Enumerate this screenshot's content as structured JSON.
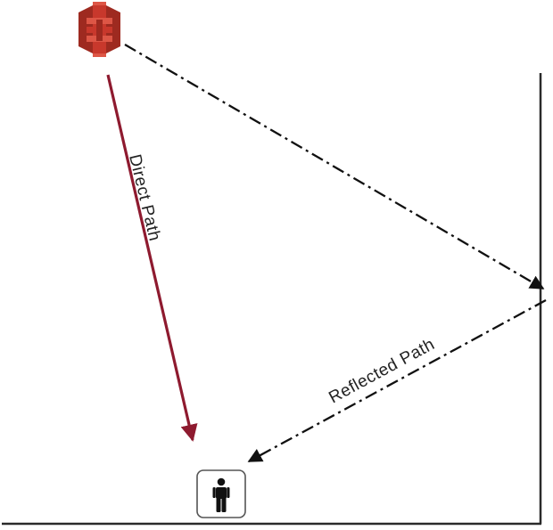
{
  "diagram": {
    "direct_path_label": "Direct Path",
    "reflected_path_label": "Reflected Path",
    "source_icon": "transmitter-tower-icon",
    "receiver_icon": "person-icon",
    "wall": "reflecting-wall",
    "colors": {
      "direct_path": "#8e1a2f",
      "reflected_path": "#111111",
      "source": "#c8382c",
      "source_dark": "#9e2a20",
      "source_light": "#dd5646",
      "wall": "#2a2a2a",
      "receiver_border": "#555555",
      "receiver_fill": "#111111"
    }
  }
}
